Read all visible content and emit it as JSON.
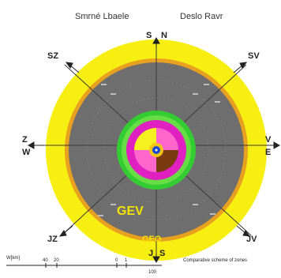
{
  "header": {
    "left_label": "Smrné Lbaele",
    "right_label": "Deslo Ravr"
  },
  "directions": {
    "n_left": "S",
    "n_right": "N",
    "ne": "SV",
    "e_top": "V",
    "e_bottom": "E",
    "se": "JV",
    "s_left": "J",
    "s_right": "S",
    "sw": "JZ",
    "w_top": "Z",
    "w_bottom": "W",
    "nw": "SZ"
  },
  "zones": {
    "main_label": "GEV",
    "ring_label": "GEO"
  },
  "scale": {
    "label": "W[km]",
    "ticks": [
      "40",
      "20",
      "0",
      "1"
    ],
    "tick_below": "100"
  },
  "footer_note": "Comparative scheme of zones",
  "colors": {
    "outer_ring": "#f7ef12",
    "orange_ring": "#e8a020",
    "grey_disc": "#6e6e6e",
    "green_ring": "#33cc33",
    "magenta_ring": "#e020c0",
    "yellow_sector": "#f5f020",
    "pink_sector": "#ff66cc",
    "brown_sector": "#7a3a10",
    "core_yellow": "#f3c319",
    "core_blue": "#1848d8"
  }
}
